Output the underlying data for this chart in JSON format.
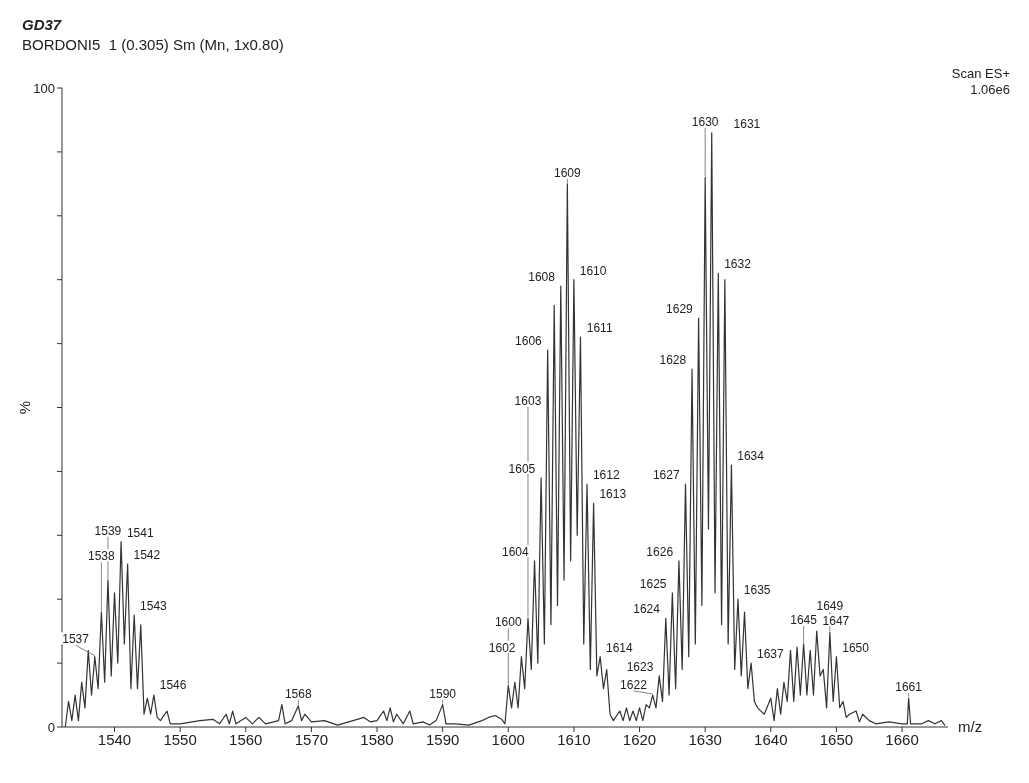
{
  "chart_data": {
    "type": "line",
    "title": "GD37",
    "subtitle": "BORDONI5  1 (0.305) Sm (Mn, 1x0.80)",
    "xlabel": "m/z",
    "ylabel": "%",
    "xlim": [
      1532,
      1667
    ],
    "xticks": [
      1540,
      1550,
      1560,
      1570,
      1580,
      1590,
      1600,
      1610,
      1620,
      1630,
      1640,
      1650,
      1660
    ],
    "ylim": [
      0,
      100
    ],
    "yticks": [
      0,
      {
        "value": 10,
        "label": null
      },
      {
        "value": 20,
        "label": null
      },
      {
        "value": 30,
        "label": null
      },
      {
        "value": 40,
        "label": null
      },
      {
        "value": 50,
        "label": null
      },
      {
        "value": 60,
        "label": null
      },
      {
        "value": 70,
        "label": null
      },
      {
        "value": 80,
        "label": null
      },
      {
        "value": 90,
        "label": null
      },
      100
    ],
    "series": [
      {
        "color": "#333333",
        "x": [
          1532.5,
          1533,
          1533.5,
          1534,
          1534.5,
          1535,
          1535.5,
          1536,
          1536.5,
          1537,
          1537.5,
          1538,
          1538.5,
          1539,
          1539.5,
          1540,
          1540.5,
          1541,
          1541.5,
          1542,
          1542.5,
          1543,
          1543.5,
          1544,
          1544.5,
          1545,
          1545.5,
          1546,
          1546.5,
          1547,
          1548,
          1548.5,
          1550,
          1553,
          1555,
          1556,
          1557,
          1557.5,
          1558,
          1558.5,
          1560,
          1561,
          1562,
          1563,
          1565,
          1565.5,
          1566,
          1567,
          1568,
          1568.5,
          1569,
          1570,
          1572,
          1574,
          1577,
          1578,
          1579,
          1580,
          1581,
          1581.5,
          1582,
          1582.5,
          1583,
          1584,
          1585,
          1585.5,
          1587,
          1588,
          1589,
          1590,
          1590.5,
          1592,
          1594,
          1596,
          1597,
          1598,
          1599,
          1599.5,
          1600,
          1600.5,
          1601,
          1601.5,
          1602,
          1602.5,
          1603,
          1603.5,
          1604,
          1604.5,
          1605,
          1605.5,
          1606,
          1606.5,
          1607,
          1607.5,
          1608,
          1608.5,
          1609,
          1609.5,
          1610,
          1610.5,
          1611,
          1611.5,
          1612,
          1612.5,
          1613,
          1613.5,
          1614,
          1614.5,
          1615,
          1615.5,
          1616,
          1617,
          1617.5,
          1618,
          1618.5,
          1619,
          1619.5,
          1620,
          1620.5,
          1621,
          1621.5,
          1622,
          1622.5,
          1623,
          1623.5,
          1624,
          1624.5,
          1625,
          1625.5,
          1626,
          1626.5,
          1627,
          1627.5,
          1628,
          1628.5,
          1629,
          1629.5,
          1630,
          1630.5,
          1631,
          1631.5,
          1632,
          1632.5,
          1633,
          1633.5,
          1634,
          1634.5,
          1635,
          1635.5,
          1636,
          1636.5,
          1637,
          1637.5,
          1638,
          1639,
          1640,
          1640.5,
          1641,
          1641.5,
          1642,
          1642.5,
          1643,
          1643.5,
          1644,
          1644.5,
          1645,
          1645.5,
          1646,
          1646.5,
          1647,
          1647.5,
          1648,
          1648.5,
          1649,
          1649.5,
          1650,
          1650.5,
          1651,
          1651.5,
          1652,
          1653,
          1653.5,
          1654,
          1655,
          1656,
          1658,
          1660,
          1660.8,
          1661,
          1661.3,
          1663,
          1664,
          1665,
          1666,
          1666.5
        ],
        "values": [
          0,
          4,
          1,
          5,
          1,
          7,
          3,
          12,
          5,
          11,
          6,
          18,
          7,
          23,
          8,
          21,
          10,
          29,
          13,
          25.5,
          6,
          17.5,
          6,
          16,
          2,
          4.5,
          2,
          5,
          1.5,
          1,
          2.5,
          0.5,
          0.5,
          1,
          1.2,
          0.5,
          2,
          0.5,
          2.5,
          0.5,
          1.5,
          0.5,
          1.5,
          0.5,
          1,
          3.5,
          0.5,
          1,
          3.3,
          1,
          2,
          0.8,
          1,
          0.3,
          1.2,
          1.5,
          0.8,
          1,
          2.5,
          1,
          3,
          0.8,
          2,
          0.5,
          2.5,
          0.5,
          0.8,
          0.3,
          1,
          3.5,
          0.5,
          0.5,
          0.3,
          1,
          1.5,
          1.8,
          1.2,
          0.5,
          6.5,
          3,
          7,
          3,
          11,
          6,
          17,
          9,
          26,
          10,
          39,
          13,
          59,
          16,
          66,
          19,
          69,
          23,
          85,
          26,
          70,
          30,
          61,
          13,
          38,
          9,
          35,
          8,
          11,
          6,
          9,
          2,
          1,
          2.5,
          1,
          3,
          1,
          2.5,
          1,
          3,
          1,
          3.5,
          3,
          5,
          3,
          8,
          4,
          17,
          5,
          21,
          6,
          26,
          9,
          38,
          11,
          56,
          13,
          64,
          19,
          86,
          31,
          93,
          21,
          71,
          16,
          70,
          13,
          41,
          9,
          20,
          8,
          18,
          6,
          10,
          4,
          3,
          2,
          4.5,
          1,
          6,
          2,
          7,
          4,
          12,
          4,
          12.5,
          5,
          13,
          5,
          12,
          5,
          15,
          8,
          9,
          3,
          14.8,
          4,
          11,
          3,
          4,
          1.5,
          2,
          2.5,
          0.8,
          2,
          1,
          0.5,
          0.8,
          0.5,
          0.5,
          4.5,
          0.5,
          0.5,
          1,
          0.5,
          1,
          0.3
        ]
      }
    ],
    "annotations": [
      "Scan ES+",
      "1.06e6",
      {
        "text": "1537",
        "x": 1537,
        "y": 11
      },
      {
        "text": "1538",
        "x": 1538,
        "y": 18
      },
      {
        "text": "1539",
        "x": 1539,
        "y": 23
      },
      {
        "text": "1541",
        "x": 1541,
        "y": 29
      },
      {
        "text": "1542",
        "x": 1542,
        "y": 25.5
      },
      {
        "text": "1543",
        "x": 1543,
        "y": 17.5
      },
      {
        "text": "1546",
        "x": 1546,
        "y": 5
      },
      {
        "text": "1568",
        "x": 1568,
        "y": 3.3
      },
      {
        "text": "1590",
        "x": 1590,
        "y": 3.5
      },
      {
        "text": "1600",
        "x": 1600,
        "y": 6.5
      },
      {
        "text": "1602",
        "x": 1602,
        "y": 11
      },
      {
        "text": "1603",
        "x": 1603,
        "y": 17
      },
      {
        "text": "1604",
        "x": 1604,
        "y": 26
      },
      {
        "text": "1605",
        "x": 1605,
        "y": 39
      },
      {
        "text": "1606",
        "x": 1606,
        "y": 59
      },
      {
        "text": "1608",
        "x": 1608,
        "y": 69
      },
      {
        "text": "1609",
        "x": 1609,
        "y": 85
      },
      {
        "text": "1610",
        "x": 1610,
        "y": 70
      },
      {
        "text": "1611",
        "x": 1611,
        "y": 61
      },
      {
        "text": "1612",
        "x": 1612,
        "y": 38
      },
      {
        "text": "1613",
        "x": 1613,
        "y": 35
      },
      {
        "text": "1614",
        "x": 1614,
        "y": 11
      },
      {
        "text": "1622",
        "x": 1622,
        "y": 5
      },
      {
        "text": "1623",
        "x": 1623,
        "y": 8
      },
      {
        "text": "1624",
        "x": 1624,
        "y": 17
      },
      {
        "text": "1625",
        "x": 1625,
        "y": 21
      },
      {
        "text": "1626",
        "x": 1626,
        "y": 26
      },
      {
        "text": "1627",
        "x": 1627,
        "y": 38
      },
      {
        "text": "1628",
        "x": 1628,
        "y": 56
      },
      {
        "text": "1629",
        "x": 1629,
        "y": 64
      },
      {
        "text": "1630",
        "x": 1630,
        "y": 86
      },
      {
        "text": "1631",
        "x": 1631,
        "y": 93
      },
      {
        "text": "1632",
        "x": 1632,
        "y": 71
      },
      {
        "text": "1634",
        "x": 1634,
        "y": 41
      },
      {
        "text": "1635",
        "x": 1635,
        "y": 20
      },
      {
        "text": "1637",
        "x": 1637,
        "y": 10
      },
      {
        "text": "1645",
        "x": 1645,
        "y": 13
      },
      {
        "text": "1647",
        "x": 1647,
        "y": 15
      },
      {
        "text": "1649",
        "x": 1649,
        "y": 14.8
      },
      {
        "text": "1650",
        "x": 1650,
        "y": 11
      },
      {
        "text": "1661",
        "x": 1661,
        "y": 4.5
      }
    ]
  }
}
